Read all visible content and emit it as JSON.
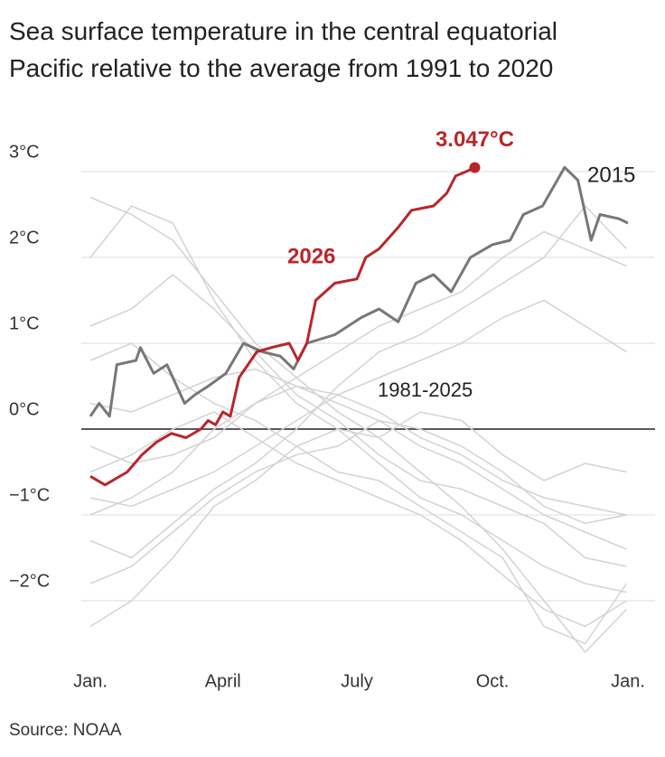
{
  "chart_data": {
    "type": "line",
    "title": "Sea surface temperature in the central equatorial Pacific relative to the average from 1991 to 2020",
    "source": "Source: NOAA",
    "xlim": [
      0,
      365
    ],
    "xticks": [
      {
        "value": 0,
        "label": "Jan."
      },
      {
        "value": 90,
        "label": "April"
      },
      {
        "value": 181,
        "label": "July"
      },
      {
        "value": 273,
        "label": "Oct."
      },
      {
        "value": 365,
        "label": "Jan."
      }
    ],
    "ylim": [
      -2.7,
      3.3
    ],
    "yticks": [
      {
        "value": -2,
        "label": "−2°C"
      },
      {
        "value": -1,
        "label": "−1°C"
      },
      {
        "value": 0,
        "label": "0°C"
      },
      {
        "value": 1,
        "label": "1°C"
      },
      {
        "value": 2,
        "label": "2°C"
      },
      {
        "value": 3,
        "label": "3°C"
      }
    ],
    "grid": true,
    "background_label": "1981-2025",
    "background_color": "#d3d3d3",
    "background_x": [
      0,
      28,
      56,
      84,
      112,
      140,
      168,
      196,
      224,
      252,
      280,
      308,
      336,
      364
    ],
    "background_series": [
      [
        2.0,
        2.6,
        2.4,
        1.5,
        0.8,
        0.3,
        0.0,
        -0.4,
        -0.8,
        -1.0,
        -1.3,
        -1.6,
        -1.8,
        -1.9
      ],
      [
        -1.0,
        -0.8,
        -0.5,
        0.0,
        0.3,
        0.6,
        0.9,
        1.2,
        1.4,
        1.6,
        2.0,
        2.3,
        2.1,
        1.9
      ],
      [
        -1.8,
        -1.6,
        -1.2,
        -0.8,
        -0.5,
        -0.3,
        -0.2,
        0.1,
        0.0,
        -0.2,
        -0.5,
        -0.9,
        -1.1,
        -1.0
      ],
      [
        0.8,
        1.0,
        0.6,
        0.3,
        0.1,
        -0.2,
        -0.5,
        -0.6,
        -0.9,
        -1.2,
        -1.5,
        -2.3,
        -2.5,
        -1.8
      ],
      [
        -0.2,
        -0.4,
        -0.3,
        -0.1,
        0.3,
        0.5,
        0.4,
        0.6,
        0.8,
        1.0,
        1.3,
        1.5,
        1.2,
        0.9
      ],
      [
        -2.3,
        -2.0,
        -1.5,
        -0.9,
        -0.6,
        -0.2,
        0.0,
        -0.1,
        0.2,
        0.1,
        -0.3,
        -0.6,
        -0.4,
        -0.5
      ],
      [
        2.7,
        2.5,
        2.2,
        1.6,
        1.0,
        0.6,
        0.2,
        -0.1,
        -0.5,
        -0.9,
        -1.4,
        -2.0,
        -2.6,
        -2.1
      ],
      [
        -0.8,
        -0.9,
        -0.7,
        -0.5,
        -0.2,
        0.1,
        0.4,
        0.2,
        -0.1,
        -0.3,
        -0.6,
        -0.8,
        -0.9,
        -1.0
      ],
      [
        0.3,
        0.2,
        0.4,
        0.6,
        0.7,
        0.5,
        0.3,
        0.1,
        -0.2,
        -0.4,
        -0.7,
        -1.0,
        -1.2,
        -1.4
      ],
      [
        -1.3,
        -1.5,
        -1.1,
        -0.7,
        -0.4,
        0.0,
        0.5,
        0.9,
        1.1,
        1.4,
        1.7,
        2.0,
        2.6,
        2.1
      ],
      [
        1.2,
        1.4,
        1.8,
        1.4,
        0.9,
        0.4,
        0.1,
        -0.3,
        -0.6,
        -0.7,
        -0.9,
        -1.1,
        -1.5,
        -1.6
      ],
      [
        -0.5,
        -0.3,
        0.0,
        0.2,
        -0.1,
        -0.4,
        -0.6,
        -0.8,
        -1.0,
        -1.3,
        -1.7,
        -2.1,
        -2.3,
        -2.0
      ]
    ],
    "series": [
      {
        "name": "2015",
        "color": "#777777",
        "x": [
          0,
          6,
          13,
          18,
          31,
          34,
          43,
          52,
          64,
          71,
          80,
          92,
          104,
          117,
          129,
          138,
          147,
          166,
          184,
          196,
          209,
          221,
          233,
          245,
          258,
          273,
          285,
          294,
          307,
          322,
          331,
          340,
          346,
          359,
          365
        ],
        "values": [
          0.15,
          0.3,
          0.15,
          0.75,
          0.8,
          0.95,
          0.65,
          0.75,
          0.3,
          0.4,
          0.5,
          0.65,
          1.0,
          0.9,
          0.85,
          0.7,
          1.0,
          1.1,
          1.3,
          1.4,
          1.25,
          1.7,
          1.8,
          1.6,
          2.0,
          2.15,
          2.2,
          2.5,
          2.6,
          3.05,
          2.9,
          2.2,
          2.5,
          2.45,
          2.4
        ]
      },
      {
        "name": "2026",
        "color": "#b8262a",
        "x": [
          0,
          10,
          25,
          35,
          45,
          55,
          65,
          75,
          80,
          85,
          90,
          95,
          101,
          113,
          123,
          135,
          141,
          147,
          153,
          166,
          181,
          187,
          196,
          209,
          218,
          233,
          242,
          248,
          255,
          261
        ],
        "values": [
          -0.55,
          -0.65,
          -0.5,
          -0.3,
          -0.15,
          -0.05,
          -0.1,
          0.0,
          0.1,
          0.05,
          0.2,
          0.15,
          0.6,
          0.9,
          0.95,
          1.0,
          0.8,
          1.0,
          1.5,
          1.7,
          1.75,
          2.0,
          2.1,
          2.35,
          2.55,
          2.6,
          2.75,
          2.95,
          3.0,
          3.047
        ],
        "end_label": "3.047°C"
      }
    ]
  }
}
